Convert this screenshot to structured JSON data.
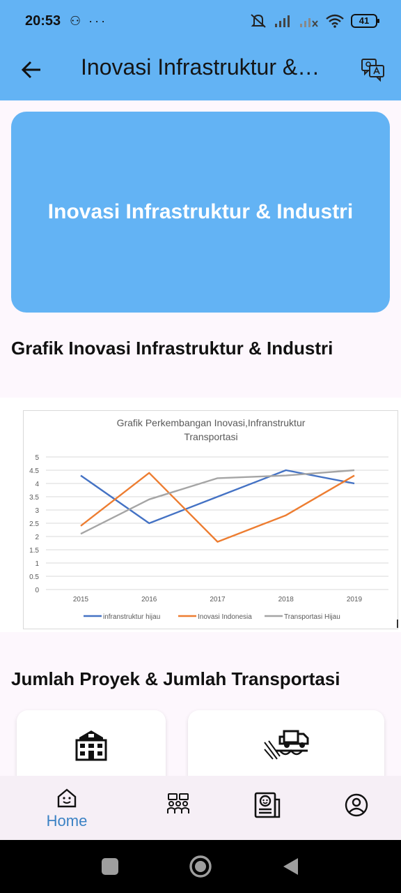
{
  "status": {
    "time": "20:53",
    "left_icons": "⚇ ···",
    "battery": "41"
  },
  "appbar": {
    "title": "Inovasi Infrastruktur & Industri"
  },
  "hero": {
    "title": "Inovasi Infrastruktur & Industri"
  },
  "sections": {
    "chart_title": "Grafik Inovasi Infrastruktur & Industri",
    "counts_title": "Jumlah Proyek & Jumlah Transportasi"
  },
  "nav": {
    "home_label": "Home"
  },
  "colors": {
    "primary": "#63b3f4",
    "series1": "#4472c4",
    "series2": "#ed7d31",
    "series3": "#a5a5a5"
  },
  "chart_data": {
    "type": "line",
    "title_lines": [
      "Grafik Perkembangan Inovasi,Infranstruktur",
      "Transportasi"
    ],
    "x": [
      "2015",
      "2016",
      "2017",
      "2018",
      "2019"
    ],
    "yticks": [
      "0",
      "0.5",
      "1",
      "1.5",
      "2",
      "2.5",
      "3",
      "3.5",
      "4",
      "4.5",
      "5"
    ],
    "ylim": [
      0,
      5
    ],
    "grid": true,
    "legend": "bottom",
    "series": [
      {
        "name": "infranstruktur hijau",
        "values": [
          4.3,
          2.5,
          3.5,
          4.5,
          4.0
        ]
      },
      {
        "name": "Inovasi Indonesia",
        "values": [
          2.4,
          4.4,
          1.8,
          2.8,
          4.3
        ]
      },
      {
        "name": "Transportasi Hijau",
        "values": [
          2.1,
          3.4,
          4.2,
          4.3,
          4.5
        ]
      }
    ]
  }
}
